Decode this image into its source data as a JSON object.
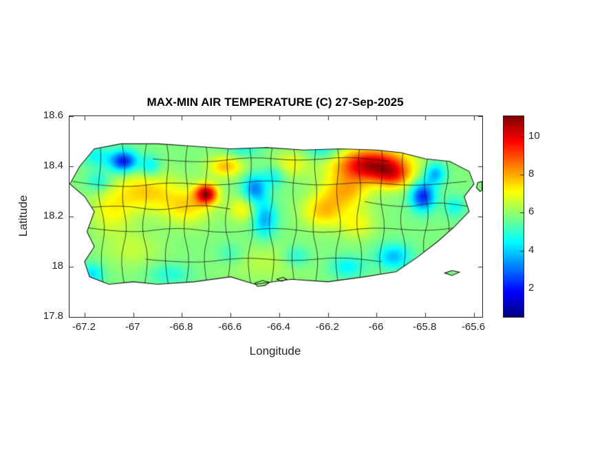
{
  "figure": {
    "title": "MAX-MIN AIR TEMPERATURE (C) 27-Sep-2025",
    "xlabel": "Longitude",
    "ylabel": "Latitude"
  },
  "chart_data": {
    "type": "heatmap",
    "title": "MAX-MIN AIR TEMPERATURE (C) 27-Sep-2025",
    "subtitle": "",
    "xlabel": "Longitude",
    "ylabel": "Latitude",
    "xlim": [
      -67.262,
      -65.566
    ],
    "ylim": [
      17.8,
      18.6
    ],
    "xticks": [
      -67.2,
      -67,
      -66.8,
      -66.6,
      -66.4,
      -66.2,
      -66,
      -65.8,
      -65.6
    ],
    "xtick_labels": [
      "-67.2",
      "-67",
      "-66.8",
      "-66.6",
      "-66.4",
      "-66.2",
      "-66",
      "-65.8",
      "-65.6"
    ],
    "yticks": [
      17.8,
      18,
      18.2,
      18.4,
      18.6
    ],
    "ytick_labels": [
      "17.8",
      "18",
      "18.2",
      "18.4",
      "18.6"
    ],
    "grid": false,
    "legend": "colorbar-right",
    "colorbar": {
      "colormap": "jet",
      "vmin": 0.5,
      "vmax": 11.1,
      "ticks": [
        10,
        8,
        6,
        4,
        2
      ],
      "tick_labels": [
        "10",
        "8",
        "6",
        "4",
        "2"
      ]
    },
    "region": "Puerto Rico municipalities",
    "field": {
      "base": 5.8,
      "clamp": [
        0.9,
        11.0
      ],
      "gaussians": [
        [
          -66.02,
          18.405,
          4.8,
          0.1,
          0.045
        ],
        [
          -65.93,
          18.36,
          2.2,
          0.05,
          0.035
        ],
        [
          -66.13,
          18.3,
          2.0,
          0.07,
          0.05
        ],
        [
          -66.22,
          18.22,
          1.8,
          0.06,
          0.045
        ],
        [
          -66.7,
          18.29,
          4.6,
          0.032,
          0.028
        ],
        [
          -66.78,
          18.24,
          1.6,
          0.07,
          0.05
        ],
        [
          -66.62,
          18.4,
          2.0,
          0.05,
          0.03
        ],
        [
          -66.95,
          18.3,
          1.8,
          0.09,
          0.055
        ],
        [
          -67.09,
          18.22,
          1.2,
          0.06,
          0.06
        ],
        [
          -66.35,
          18.41,
          1.2,
          0.05,
          0.035
        ],
        [
          -66.55,
          18.23,
          1.4,
          0.04,
          0.035
        ],
        [
          -66.45,
          18.02,
          0.6,
          0.12,
          0.05
        ],
        [
          -67.0,
          18.07,
          0.7,
          0.08,
          0.05
        ],
        [
          -66.08,
          18.17,
          1.2,
          0.05,
          0.04
        ],
        [
          -66.5,
          18.31,
          -2.6,
          0.035,
          0.04
        ],
        [
          -66.46,
          18.19,
          -2.2,
          0.035,
          0.05
        ],
        [
          -67.04,
          18.42,
          -3.8,
          0.04,
          0.03
        ],
        [
          -66.93,
          18.4,
          -1.5,
          0.03,
          0.03
        ],
        [
          -67.14,
          18.34,
          -1.2,
          0.035,
          0.03
        ],
        [
          -65.81,
          18.28,
          -3.6,
          0.035,
          0.04
        ],
        [
          -65.76,
          18.37,
          -2.2,
          0.03,
          0.03
        ],
        [
          -65.93,
          18.04,
          -2.0,
          0.05,
          0.035
        ],
        [
          -66.12,
          18.0,
          -1.4,
          0.05,
          0.03
        ],
        [
          -66.33,
          18.04,
          -1.2,
          0.04,
          0.03
        ],
        [
          -66.85,
          17.97,
          -1.0,
          0.06,
          0.03
        ],
        [
          -67.17,
          17.97,
          -1.6,
          0.035,
          0.03
        ],
        [
          -66.22,
          18.47,
          -1.3,
          0.05,
          0.03
        ],
        [
          -66.55,
          18.47,
          -1.0,
          0.05,
          0.025
        ],
        [
          -67.15,
          18.44,
          -1.2,
          0.04,
          0.03
        ],
        [
          -66.42,
          18.36,
          -1.2,
          0.03,
          0.03
        ],
        [
          -65.68,
          18.24,
          -1.2,
          0.03,
          0.03
        ],
        [
          -66.6,
          18.05,
          -0.8,
          0.04,
          0.03
        ]
      ]
    },
    "island_outline": [
      [
        -67.16,
        18.47
      ],
      [
        -67.05,
        18.49
      ],
      [
        -66.9,
        18.49
      ],
      [
        -66.75,
        18.48
      ],
      [
        -66.6,
        18.47
      ],
      [
        -66.45,
        18.475
      ],
      [
        -66.3,
        18.465
      ],
      [
        -66.15,
        18.47
      ],
      [
        -66.0,
        18.465
      ],
      [
        -65.9,
        18.455
      ],
      [
        -65.8,
        18.43
      ],
      [
        -65.7,
        18.42
      ],
      [
        -65.62,
        18.38
      ],
      [
        -65.6,
        18.33
      ],
      [
        -65.64,
        18.28
      ],
      [
        -65.62,
        18.22
      ],
      [
        -65.68,
        18.16
      ],
      [
        -65.75,
        18.1
      ],
      [
        -65.83,
        18.04
      ],
      [
        -65.92,
        17.98
      ],
      [
        -66.05,
        17.96
      ],
      [
        -66.2,
        17.94
      ],
      [
        -66.35,
        17.95
      ],
      [
        -66.5,
        17.93
      ],
      [
        -66.6,
        17.96
      ],
      [
        -66.75,
        17.94
      ],
      [
        -66.9,
        17.93
      ],
      [
        -67.0,
        17.94
      ],
      [
        -67.1,
        17.93
      ],
      [
        -67.18,
        17.96
      ],
      [
        -67.2,
        18.02
      ],
      [
        -67.16,
        18.08
      ],
      [
        -67.19,
        18.14
      ],
      [
        -67.16,
        18.22
      ],
      [
        -67.2,
        18.28
      ],
      [
        -67.26,
        18.33
      ],
      [
        -67.22,
        18.4
      ]
    ],
    "islets": [
      [
        [
          -66.5,
          17.935
        ],
        [
          -66.47,
          17.945
        ],
        [
          -66.44,
          17.938
        ],
        [
          -66.46,
          17.925
        ],
        [
          -66.49,
          17.922
        ]
      ],
      [
        [
          -66.41,
          17.95
        ],
        [
          -66.385,
          17.958
        ],
        [
          -66.37,
          17.95
        ],
        [
          -66.39,
          17.942
        ]
      ],
      [
        [
          -65.72,
          17.975
        ],
        [
          -65.69,
          17.985
        ],
        [
          -65.66,
          17.978
        ],
        [
          -65.69,
          17.965
        ]
      ],
      [
        [
          -65.575,
          18.3
        ],
        [
          -65.59,
          18.315
        ],
        [
          -65.585,
          18.335
        ],
        [
          -65.567,
          18.34
        ],
        [
          -65.567,
          18.305
        ]
      ]
    ],
    "boundaries": [
      [
        [
          -67.12,
          17.9
        ],
        [
          -67.14,
          18.03
        ],
        [
          -67.11,
          18.16
        ],
        [
          -67.15,
          18.29
        ],
        [
          -67.13,
          18.42
        ],
        [
          -67.14,
          18.52
        ]
      ],
      [
        [
          -67.03,
          17.9
        ],
        [
          -67.06,
          18.02
        ],
        [
          -67.02,
          18.15
        ],
        [
          -67.05,
          18.27
        ],
        [
          -67.03,
          18.39
        ],
        [
          -67.05,
          18.52
        ]
      ],
      [
        [
          -66.96,
          17.9
        ],
        [
          -66.93,
          18.03
        ],
        [
          -66.97,
          18.15
        ],
        [
          -66.94,
          18.28
        ],
        [
          -66.96,
          18.41
        ],
        [
          -66.94,
          18.52
        ]
      ],
      [
        [
          -66.85,
          17.9
        ],
        [
          -66.88,
          18.04
        ],
        [
          -66.84,
          18.17
        ],
        [
          -66.87,
          18.3
        ],
        [
          -66.85,
          18.43
        ],
        [
          -66.87,
          18.52
        ]
      ],
      [
        [
          -66.79,
          17.9
        ],
        [
          -66.76,
          18.02
        ],
        [
          -66.8,
          18.15
        ],
        [
          -66.77,
          18.28
        ],
        [
          -66.79,
          18.41
        ],
        [
          -66.77,
          18.52
        ]
      ],
      [
        [
          -66.69,
          17.9
        ],
        [
          -66.72,
          18.03
        ],
        [
          -66.68,
          18.16
        ],
        [
          -66.71,
          18.29
        ],
        [
          -66.69,
          18.43
        ],
        [
          -66.71,
          18.52
        ]
      ],
      [
        [
          -66.62,
          17.9
        ],
        [
          -66.59,
          18.04
        ],
        [
          -66.63,
          18.17
        ],
        [
          -66.6,
          18.3
        ],
        [
          -66.62,
          18.42
        ],
        [
          -66.6,
          18.52
        ]
      ],
      [
        [
          -66.51,
          17.9
        ],
        [
          -66.54,
          18.02
        ],
        [
          -66.5,
          18.15
        ],
        [
          -66.53,
          18.28
        ],
        [
          -66.51,
          18.41
        ],
        [
          -66.53,
          18.52
        ]
      ],
      [
        [
          -66.44,
          17.9
        ],
        [
          -66.41,
          18.03
        ],
        [
          -66.45,
          18.16
        ],
        [
          -66.42,
          18.29
        ],
        [
          -66.44,
          18.42
        ],
        [
          -66.42,
          18.52
        ]
      ],
      [
        [
          -66.33,
          17.9
        ],
        [
          -66.36,
          18.04
        ],
        [
          -66.32,
          18.16
        ],
        [
          -66.35,
          18.29
        ],
        [
          -66.33,
          18.42
        ],
        [
          -66.35,
          18.52
        ]
      ],
      [
        [
          -66.26,
          17.9
        ],
        [
          -66.23,
          18.02
        ],
        [
          -66.27,
          18.15
        ],
        [
          -66.24,
          18.28
        ],
        [
          -66.26,
          18.41
        ],
        [
          -66.24,
          18.52
        ]
      ],
      [
        [
          -66.15,
          17.9
        ],
        [
          -66.18,
          18.03
        ],
        [
          -66.14,
          18.16
        ],
        [
          -66.17,
          18.29
        ],
        [
          -66.15,
          18.42
        ],
        [
          -66.17,
          18.52
        ]
      ],
      [
        [
          -66.08,
          17.9
        ],
        [
          -66.05,
          18.04
        ],
        [
          -66.09,
          18.17
        ],
        [
          -66.06,
          18.3
        ],
        [
          -66.08,
          18.42
        ],
        [
          -66.06,
          18.52
        ]
      ],
      [
        [
          -65.97,
          17.9
        ],
        [
          -66.0,
          18.02
        ],
        [
          -65.96,
          18.15
        ],
        [
          -65.99,
          18.28
        ],
        [
          -65.97,
          18.41
        ],
        [
          -65.99,
          18.52
        ]
      ],
      [
        [
          -65.9,
          17.95
        ],
        [
          -65.87,
          18.06
        ],
        [
          -65.91,
          18.18
        ],
        [
          -65.88,
          18.3
        ],
        [
          -65.9,
          18.42
        ],
        [
          -65.88,
          18.5
        ]
      ],
      [
        [
          -65.79,
          17.98
        ],
        [
          -65.82,
          18.08
        ],
        [
          -65.78,
          18.2
        ],
        [
          -65.81,
          18.32
        ],
        [
          -65.79,
          18.44
        ]
      ],
      [
        [
          -65.72,
          18.05
        ],
        [
          -65.69,
          18.15
        ],
        [
          -65.73,
          18.26
        ],
        [
          -65.7,
          18.36
        ],
        [
          -65.72,
          18.45
        ]
      ],
      [
        [
          -67.25,
          18.34
        ],
        [
          -67.05,
          18.31
        ],
        [
          -66.85,
          18.34
        ],
        [
          -66.65,
          18.32
        ],
        [
          -66.45,
          18.35
        ],
        [
          -66.25,
          18.32
        ],
        [
          -66.05,
          18.34
        ],
        [
          -65.85,
          18.32
        ],
        [
          -65.63,
          18.34
        ]
      ],
      [
        [
          -67.22,
          18.16
        ],
        [
          -67.02,
          18.13
        ],
        [
          -66.82,
          18.16
        ],
        [
          -66.62,
          18.13
        ],
        [
          -66.42,
          18.16
        ],
        [
          -66.22,
          18.13
        ],
        [
          -66.02,
          18.16
        ],
        [
          -65.8,
          18.14
        ],
        [
          -65.64,
          18.16
        ]
      ],
      [
        [
          -67.25,
          18.23
        ],
        [
          -67.06,
          18.25
        ],
        [
          -66.9,
          18.22
        ],
        [
          -66.74,
          18.25
        ],
        [
          -66.6,
          18.23
        ]
      ],
      [
        [
          -66.92,
          18.43
        ],
        [
          -66.72,
          18.41
        ],
        [
          -66.52,
          18.44
        ],
        [
          -66.32,
          18.42
        ],
        [
          -66.12,
          18.44
        ],
        [
          -65.95,
          18.42
        ]
      ],
      [
        [
          -66.95,
          18.03
        ],
        [
          -66.75,
          18.01
        ],
        [
          -66.55,
          18.04
        ],
        [
          -66.35,
          18.02
        ],
        [
          -66.15,
          18.04
        ],
        [
          -65.98,
          18.02
        ]
      ],
      [
        [
          -66.05,
          18.26
        ],
        [
          -65.9,
          18.23
        ],
        [
          -65.76,
          18.26
        ],
        [
          -65.62,
          18.24
        ]
      ]
    ]
  }
}
